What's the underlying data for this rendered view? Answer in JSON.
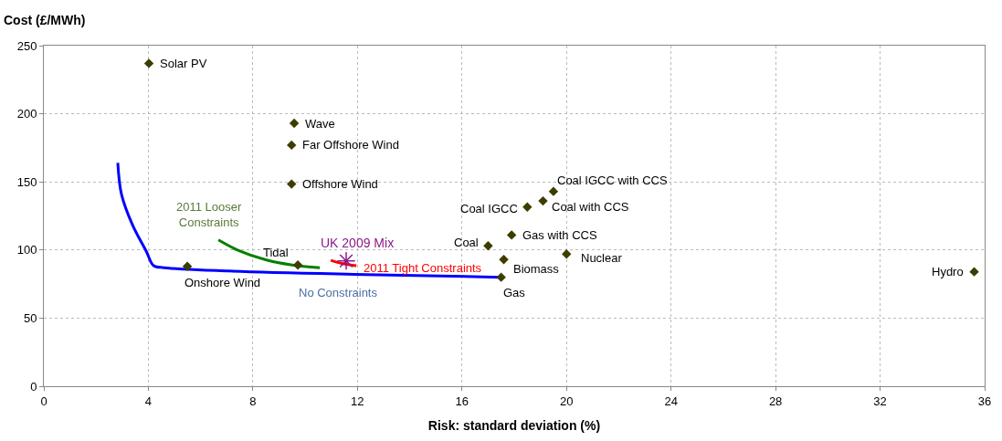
{
  "chart_data": {
    "type": "scatter",
    "xlabel": "Risk: standard deviation (%)",
    "ylabel": "Cost (£/MWh)",
    "xlim": [
      0,
      36
    ],
    "xticks": [
      0,
      4,
      8,
      12,
      16,
      20,
      24,
      28,
      32,
      36
    ],
    "ylim": [
      0,
      250
    ],
    "yticks": [
      0,
      50,
      100,
      150,
      200,
      250
    ],
    "grid": true,
    "series": [
      {
        "type": "line",
        "name": "No Constraints",
        "color": "#0000ff",
        "marker": "none",
        "x": [
          2.83,
          2.97,
          3.39,
          3.92,
          4.2,
          4.6,
          7.06,
          12.3,
          17.5
        ],
        "values": [
          164,
          141,
          118.5,
          99,
          88.5,
          87,
          84.6,
          82,
          80
        ]
      },
      {
        "type": "line",
        "name": "2011 Looser Constraints",
        "color": "#008000",
        "marker": "none",
        "x": [
          6.68,
          7.41,
          8.46,
          9.5,
          10.56
        ],
        "values": [
          107.4,
          100,
          93,
          89,
          87
        ]
      },
      {
        "type": "line",
        "name": "2011 Tight Constraints",
        "color": "#ff0000",
        "marker": "none",
        "x": [
          10.98,
          11.43,
          11.96
        ],
        "values": [
          92.4,
          90,
          88.5
        ]
      },
      {
        "color": "#3d3d00",
        "marker": "diamond",
        "x": [
          4.02,
          9.58,
          9.48,
          9.48,
          5.49,
          9.72,
          17.0,
          18.5,
          19.1,
          19.5,
          17.9,
          17.6,
          20.0,
          17.5,
          35.6
        ],
        "values": [
          237,
          193,
          177,
          148.4,
          88,
          89,
          103,
          131.5,
          136,
          143,
          111,
          93,
          97,
          80,
          84
        ]
      },
      {
        "type": "scatter",
        "name": "UK 2009 Mix",
        "color": "#8b1a8b",
        "marker": "cross",
        "x": [
          11.57
        ],
        "values": [
          92
        ]
      }
    ],
    "annotations": [
      {
        "text": "Solar PV",
        "x": 4.02,
        "y": 237
      },
      {
        "text": "Wave",
        "x": 9.58,
        "y": 193
      },
      {
        "text": "Far Offshore Wind",
        "x": 9.48,
        "y": 177
      },
      {
        "text": "Offshore Wind",
        "x": 9.48,
        "y": 148.4
      },
      {
        "text": "Onshore Wind",
        "x": 5.49,
        "y": 88
      },
      {
        "text": "Tidal",
        "x": 9.72,
        "y": 89
      },
      {
        "text": "Coal",
        "x": 17.0,
        "y": 103
      },
      {
        "text": "Coal IGCC",
        "x": 18.5,
        "y": 131.5
      },
      {
        "text": "Coal with CCS",
        "x": 19.1,
        "y": 136
      },
      {
        "text": "Coal IGCC with CCS",
        "x": 19.5,
        "y": 143
      },
      {
        "text": "Gas with CCS",
        "x": 17.9,
        "y": 111
      },
      {
        "text": "Biomass",
        "x": 17.6,
        "y": 93
      },
      {
        "text": "Nuclear",
        "x": 20.0,
        "y": 97
      },
      {
        "text": "Gas",
        "x": 17.5,
        "y": 80
      },
      {
        "text": "Hydro",
        "x": 35.6,
        "y": 84
      }
    ]
  }
}
